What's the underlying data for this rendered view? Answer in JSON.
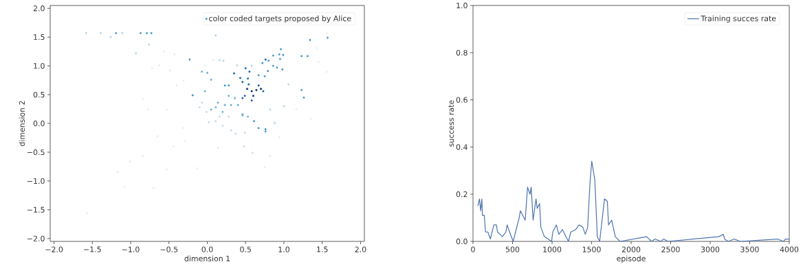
{
  "chart_data": [
    {
      "type": "scatter",
      "xlabel": "dimension 1",
      "ylabel": "dimension 2",
      "legend": "top right",
      "xlim": [
        -2.05,
        2.05
      ],
      "ylim": [
        -2.05,
        2.05
      ],
      "xticks": [
        {
          "value": -2,
          "label": "−2.0"
        },
        {
          "value": -1.5,
          "label": "−1.5"
        },
        {
          "value": -1,
          "label": "−1.0"
        },
        {
          "value": -0.5,
          "label": "−0.5"
        },
        {
          "value": 0,
          "label": "0.0"
        },
        {
          "value": 0.5,
          "label": "0.5"
        },
        {
          "value": 1,
          "label": "1.0"
        },
        {
          "value": 1.5,
          "label": "1.5"
        },
        {
          "value": 2,
          "label": "2.0"
        }
      ],
      "yticks": [
        {
          "value": -2,
          "label": "−2.0"
        },
        {
          "value": -1.5,
          "label": "−1.5"
        },
        {
          "value": -1,
          "label": "−1.0"
        },
        {
          "value": -0.5,
          "label": "−0.5"
        },
        {
          "value": 0,
          "label": "0.0"
        },
        {
          "value": 0.5,
          "label": "0.5"
        },
        {
          "value": 1,
          "label": "1.0"
        },
        {
          "value": 1.5,
          "label": "1.5"
        },
        {
          "value": 2,
          "label": "2.0"
        }
      ],
      "series": [
        {
          "name": "color coded targets proposed by Alice",
          "color": "#4a98c9",
          "x": [
            -1.58,
            -1.39,
            -1.19,
            -1.11,
            -0.87,
            -0.79,
            -0.73,
            -1.26,
            -0.76,
            -0.93,
            -0.56,
            -0.43,
            -0.63,
            -0.72,
            -0.49,
            -0.23,
            0.11,
            0.16,
            0.21,
            0.08,
            -0.03,
            1.34,
            1.57,
            1.56,
            1.43,
            0.96,
            1.23,
            1.31,
            0.94,
            0.99,
            0.86,
            0.76,
            0.8,
            0.95,
            0.72,
            0.86,
            0.91,
            0.98,
            0.79,
            0.58,
            0.39,
            0.5,
            0.35,
            0.55,
            0.43,
            0.53,
            0.67,
            0.75,
            1.06,
            1.23,
            1.26,
            1.0,
            0.82,
            0.88,
            1.35,
            1.16,
            1.45,
            1.56,
            0.58,
            0.52,
            0.64,
            0.7,
            0.6,
            0.49,
            0.67,
            0.54,
            0.46,
            0.58,
            0.73,
            0.46,
            0.23,
            0.11,
            0.2,
            0.31,
            0.36,
            0.4,
            0.28,
            0.14,
            0.05,
            0.46,
            0.61,
            0.67,
            0.76,
            0.76,
            0.53,
            0.23,
            0.28,
            -0.03,
            -0.19,
            0.05,
            -0.07,
            0.0,
            0.46,
            0.02,
            0.11,
            0.2,
            0.31,
            0.37,
            0.49,
            0.28,
            0.16,
            -0.07,
            -0.1,
            -0.01,
            0.48,
            0.59,
            -0.31,
            -0.29,
            -0.44,
            -0.84,
            -1.01,
            -1.17,
            -1.08,
            -0.7,
            -0.53,
            -0.13,
            0.14,
            0.82,
            0.75,
            -1.57,
            -0.65,
            -0.77,
            -0.53,
            -0.84,
            -0.4,
            -0.31,
            0.94
          ],
          "values": [
            1.57,
            1.57,
            1.57,
            1.57,
            1.57,
            1.57,
            1.57,
            1.5,
            1.37,
            1.22,
            1.25,
            1.2,
            1.01,
            0.96,
            0.92,
            1.11,
            1.53,
            1.1,
            1.09,
            1.1,
            1.01,
            1.45,
            1.49,
            1.57,
            1.31,
            1.29,
            1.17,
            1.17,
            1.2,
            1.19,
            1.18,
            1.11,
            1.09,
            1.12,
            1.05,
            1.0,
            0.97,
            0.94,
            0.91,
            1.0,
            1.01,
            0.96,
            0.87,
            0.9,
            0.79,
            0.78,
            0.84,
            0.82,
            0.68,
            0.58,
            0.45,
            0.3,
            0.24,
            0.01,
            0.08,
            0.25,
            1.07,
            0.9,
            0.56,
            0.6,
            0.58,
            0.6,
            0.48,
            0.48,
            0.66,
            0.68,
            0.44,
            0.4,
            0.56,
            0.72,
            0.32,
            0.28,
            0.2,
            0.32,
            0.44,
            0.32,
            0.48,
            0.36,
            0.24,
            0.16,
            0.04,
            -0.08,
            -0.14,
            -0.1,
            0.12,
            0.66,
            0.66,
            0.56,
            0.49,
            0.76,
            0.9,
            0.88,
            0.14,
            0.02,
            0.04,
            -0.04,
            -0.12,
            -0.18,
            -0.16,
            0.12,
            0.12,
            0.36,
            0.28,
            0.2,
            -0.4,
            -0.51,
            -0.08,
            -0.3,
            -0.4,
            -0.56,
            -0.66,
            -0.84,
            -1.1,
            -1.12,
            -0.8,
            -0.78,
            -0.42,
            -0.56,
            -0.76,
            -1.56,
            -0.22,
            0.24,
            0.24,
            0.42,
            0.66,
            0.74,
            -0.24
          ],
          "colors": [
            "#b5d4e9",
            "#b5d4e9",
            "#4a98c9",
            "#b5d4e9",
            "#4a98c9",
            "#4a98c9",
            "#4a98c9",
            "#b5d4e9",
            "#b5d4e9",
            "#b5d4e9",
            "#e3eef8",
            "#e3eef8",
            "#e3eef8",
            "#e3eef8",
            "#e3eef8",
            "#4a98c9",
            "#b5d4e9",
            "#b5d4e9",
            "#b5d4e9",
            "#e3eef8",
            "#e3eef8",
            "#4a98c9",
            "#4a98c9",
            "#e3eef8",
            "#e3eef8",
            "#4a98c9",
            "#4a98c9",
            "#4a98c9",
            "#4a98c9",
            "#4a98c9",
            "#4a98c9",
            "#1764ab",
            "#4a98c9",
            "#4a98c9",
            "#4a98c9",
            "#4a98c9",
            "#4a98c9",
            "#4a98c9",
            "#4a98c9",
            "#b5d4e9",
            "#b5d4e9",
            "#1764ab",
            "#1764ab",
            "#1764ab",
            "#1764ab",
            "#1764ab",
            "#4a98c9",
            "#4a98c9",
            "#b5d4e9",
            "#4a98c9",
            "#4a98c9",
            "#b5d4e9",
            "#b5d4e9",
            "#b5d4e9",
            "#e3eef8",
            "#e3eef8",
            "#e3eef8",
            "#e3eef8",
            "#08306b",
            "#08306b",
            "#08306b",
            "#08306b",
            "#08306b",
            "#1764ab",
            "#1764ab",
            "#1764ab",
            "#1764ab",
            "#1764ab",
            "#1764ab",
            "#1764ab",
            "#6aaed6",
            "#6aaed6",
            "#6aaed6",
            "#6aaed6",
            "#6aaed6",
            "#6aaed6",
            "#6aaed6",
            "#6aaed6",
            "#6aaed6",
            "#6aaed6",
            "#4a98c9",
            "#4a98c9",
            "#4a98c9",
            "#4a98c9",
            "#6aaed6",
            "#4a98c9",
            "#4a98c9",
            "#6aaed6",
            "#4a98c9",
            "#6aaed6",
            "#6aaed6",
            "#6aaed6",
            "#6aaed6",
            "#c6dbef",
            "#c6dbef",
            "#c6dbef",
            "#c6dbef",
            "#c6dbef",
            "#c6dbef",
            "#c6dbef",
            "#c6dbef",
            "#c6dbef",
            "#c6dbef",
            "#c6dbef",
            "#c6dbef",
            "#c6dbef",
            "#e3eef8",
            "#e3eef8",
            "#e3eef8",
            "#e3eef8",
            "#e3eef8",
            "#e3eef8",
            "#e3eef8",
            "#e3eef8",
            "#e3eef8",
            "#e3eef8",
            "#e3eef8",
            "#e3eef8",
            "#e3eef8",
            "#e3eef8",
            "#e3eef8",
            "#e3eef8",
            "#e3eef8",
            "#e3eef8",
            "#e3eef8",
            "#e3eef8",
            "#e3eef8"
          ]
        }
      ]
    },
    {
      "type": "line",
      "xlabel": "episode",
      "ylabel": "success rate",
      "legend": "top right",
      "xlim": [
        0,
        4000
      ],
      "ylim": [
        0,
        1
      ],
      "xticks": [
        0,
        500,
        1000,
        1500,
        2000,
        2500,
        3000,
        3500,
        4000
      ],
      "yticks": [
        {
          "value": 0,
          "label": "0.0"
        },
        {
          "value": 0.2,
          "label": "0.2"
        },
        {
          "value": 0.4,
          "label": "0.4"
        },
        {
          "value": 0.6,
          "label": "0.6"
        },
        {
          "value": 0.8,
          "label": "0.8"
        },
        {
          "value": 1,
          "label": "1.0"
        }
      ],
      "series": [
        {
          "name": "Training succes rate",
          "color": "#4c72b0",
          "x": [
            61,
            82,
            97,
            112,
            119,
            143,
            158,
            188,
            219,
            264,
            295,
            310,
            340,
            371,
            416,
            432,
            462,
            508,
            538,
            584,
            599,
            660,
            690,
            721,
            736,
            760,
            797,
            812,
            842,
            858,
            903,
            949,
            994,
            1009,
            1055,
            1085,
            1131,
            1161,
            1207,
            1237,
            1298,
            1343,
            1389,
            1420,
            1450,
            1480,
            1502,
            1541,
            1572,
            1602,
            1663,
            1699,
            1714,
            1754,
            1800,
            1860,
            2195,
            2256,
            2302,
            2378,
            2408,
            2469,
            3107,
            3167,
            3182,
            3228,
            3304,
            3380,
            3852,
            3928,
            3950,
            4000
          ],
          "values": [
            0.15,
            0.18,
            0.13,
            0.18,
            0.11,
            0.11,
            0.04,
            0.04,
            0.01,
            0.07,
            0.07,
            0.04,
            0.03,
            0.02,
            0.04,
            0.07,
            0.04,
            0,
            0.04,
            0.1,
            0.13,
            0.09,
            0.23,
            0.2,
            0.23,
            0.09,
            0.18,
            0.14,
            0.16,
            0.06,
            0.02,
            0.01,
            0,
            0.04,
            0.07,
            0.03,
            0.05,
            0.03,
            0,
            0.04,
            0.05,
            0.07,
            0.06,
            0.03,
            0.06,
            0.25,
            0.34,
            0.26,
            0.02,
            0,
            0.18,
            0.17,
            0.07,
            0.09,
            0.02,
            0,
            0.02,
            0,
            0.01,
            0,
            0.01,
            0,
            0.02,
            0.03,
            0.01,
            0,
            0.01,
            0,
            0.01,
            0,
            0.01,
            0.01
          ]
        }
      ]
    }
  ]
}
